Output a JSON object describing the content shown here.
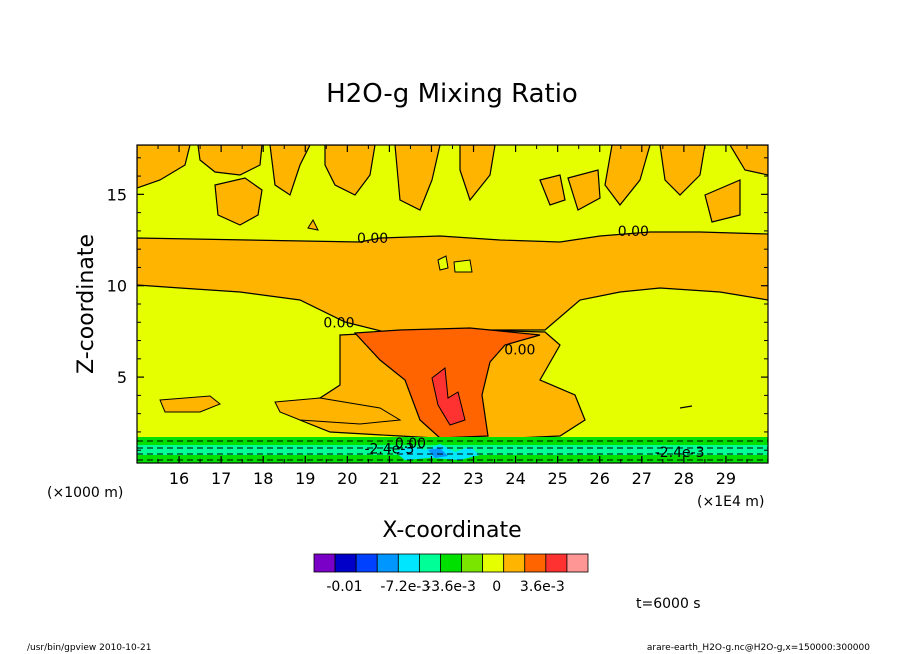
{
  "chart_data": {
    "type": "heatmap",
    "title": "H2O-g Mixing Ratio",
    "xlabel": "X-coordinate",
    "ylabel": "Z-coordinate",
    "x_unit_left": "(×1000 m)",
    "x_unit_right": "(×1E4 m)",
    "x_ticks": [
      "16",
      "17",
      "18",
      "19",
      "20",
      "21",
      "22",
      "23",
      "24",
      "25",
      "26",
      "27",
      "28",
      "29"
    ],
    "x_tick_values": [
      16,
      17,
      18,
      19,
      20,
      21,
      22,
      23,
      24,
      25,
      26,
      27,
      28,
      29
    ],
    "xlim": [
      15.0,
      30.0
    ],
    "y_ticks": [
      "5",
      "10",
      "15"
    ],
    "y_tick_values": [
      5,
      10,
      15
    ],
    "ylim": [
      0.3,
      17.7
    ],
    "grid": false,
    "contour_labels": [
      {
        "text": "0.00",
        "x": 20.6,
        "z": 12.6
      },
      {
        "text": "0.00",
        "x": 26.8,
        "z": 13.0
      },
      {
        "text": "0.00",
        "x": 19.8,
        "z": 8.0
      },
      {
        "text": "0.00",
        "x": 24.1,
        "z": 6.5
      },
      {
        "text": "0.00",
        "x": 21.5,
        "z": 1.4
      },
      {
        "text": "-2.4e-3",
        "x": 21.0,
        "z": 1.1
      },
      {
        "text": "-2.4e-3",
        "x": 27.9,
        "z": 0.9
      }
    ],
    "colorbar": {
      "colors": [
        "#7a00c8",
        "#0000c8",
        "#0040ff",
        "#0096ff",
        "#00e6ff",
        "#00ff96",
        "#00e000",
        "#7ae600",
        "#e6ff00",
        "#ffb400",
        "#ff6400",
        "#ff3232",
        "#ff9696"
      ],
      "labels": [
        "-0.01",
        "-7.2e-3",
        "-3.6e-3",
        "0",
        "3.6e-3"
      ],
      "label_values": [
        -0.012,
        -0.0072,
        -0.0036,
        0,
        0.0036
      ]
    },
    "time_label": "t=6000 s"
  },
  "footer": {
    "left": "/usr/bin/gpview   2010-10-21",
    "right": "arare-earth_H2O-g.nc@H2O-g,x=150000:300000"
  }
}
